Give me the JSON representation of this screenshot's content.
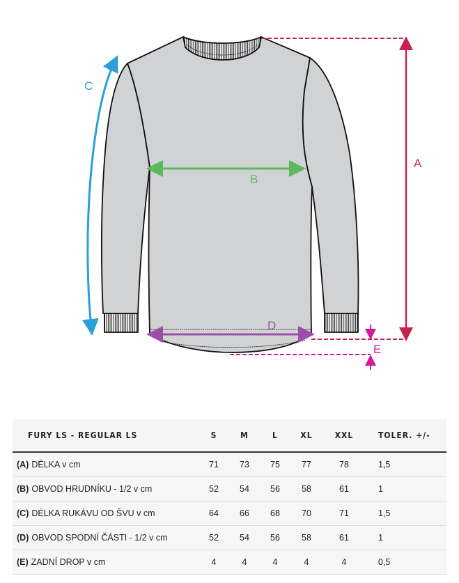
{
  "diagram": {
    "labels": {
      "a": "A",
      "b": "B",
      "c": "C",
      "d": "D",
      "e": "E"
    },
    "colors": {
      "a": "#c8234a",
      "b": "#5cb85c",
      "c": "#2a9fd8",
      "d": "#9b4fa8",
      "e": "#d6179c",
      "garment": "#d1d2d4"
    }
  },
  "table": {
    "title": "FURY LS - REGULAR LS",
    "sizes": [
      "S",
      "M",
      "L",
      "XL",
      "XXL"
    ],
    "tolerance_header": "TOLER. +/-",
    "rows": [
      {
        "code": "(A)",
        "label": "DÉLKA v cm",
        "values": [
          "71",
          "73",
          "75",
          "77",
          "78"
        ],
        "tol": "1,5"
      },
      {
        "code": "(B)",
        "label": "OBVOD HRUDNÍKU - 1/2 v cm",
        "values": [
          "52",
          "54",
          "56",
          "58",
          "61"
        ],
        "tol": "1"
      },
      {
        "code": "(C)",
        "label": "DÉLKA RUKÁVU OD ŠVU v cm",
        "values": [
          "64",
          "66",
          "68",
          "70",
          "71"
        ],
        "tol": "1,5"
      },
      {
        "code": "(D)",
        "label": "OBVOD SPODNÍ ČÁSTI - 1/2 v cm",
        "values": [
          "52",
          "54",
          "56",
          "58",
          "61"
        ],
        "tol": "1"
      },
      {
        "code": "(E)",
        "label": "ZADNÍ DROP v cm",
        "values": [
          "4",
          "4",
          "4",
          "4",
          "4"
        ],
        "tol": "0,5"
      }
    ]
  }
}
